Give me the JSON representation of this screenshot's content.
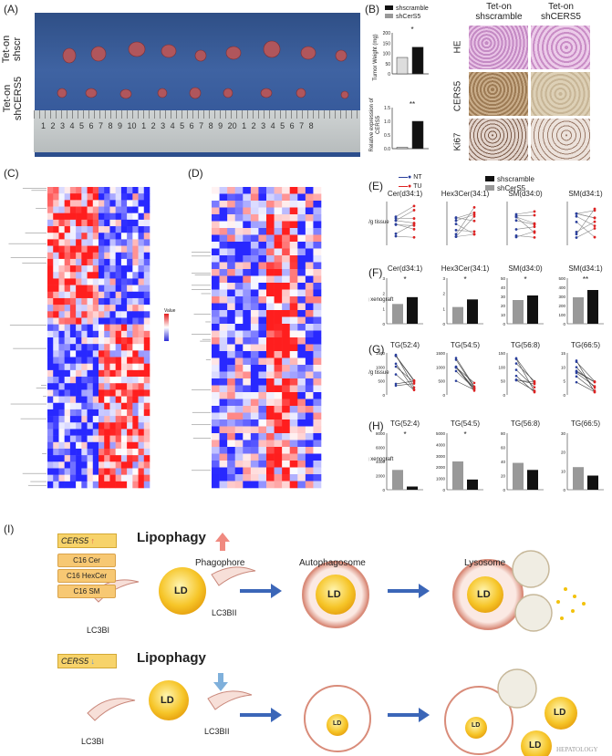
{
  "panels": {
    "A": "(A)",
    "B": "(B)",
    "C": "(C)",
    "D": "(D)",
    "E": "(E)",
    "F": "(F)",
    "G": "(G)",
    "H": "(H)",
    "I": "(I)"
  },
  "photo": {
    "row1_label_line1": "Tet-on",
    "row1_label_line2": "shscr",
    "row2_label_line1": "Tet-on",
    "row2_label_line2": "shCERS5",
    "ruler_ticks": "1 2 3 4 5 6 7 8 9 10 1 2 3 4 5 6 7 8 9 20 1 2 3 4 5 6 7 8"
  },
  "panelB": {
    "legend": [
      "shscramble",
      "shCerS5"
    ],
    "top_ylabel": "Tumor Weight (mg)",
    "top_yticks": [
      "200",
      "150",
      "100",
      "50",
      "0"
    ],
    "top_sig": "*",
    "bottom_ylabel": "Relative expression of CERS5",
    "bottom_yticks": [
      "1.5",
      "1.0",
      "0.5",
      "0.0"
    ],
    "bottom_sig": "**",
    "col1_line1": "Tet-on",
    "col1_line2": "shscramble",
    "col2_line1": "Tet-on",
    "col2_line2": "shCERS5",
    "rows": [
      "HE",
      "CERS5",
      "Ki67"
    ]
  },
  "chart_data": [
    {
      "panel": "B-top",
      "type": "bar",
      "categories": [
        "shscramble",
        "shCerS5"
      ],
      "values": [
        80,
        130
      ],
      "ylabel": "Tumor Weight (mg)",
      "ylim": [
        0,
        200
      ]
    },
    {
      "panel": "B-bottom",
      "type": "bar",
      "categories": [
        "shscramble",
        "shCerS5"
      ],
      "values": [
        0.05,
        1.0
      ],
      "ylabel": "Relative expression of CERS5",
      "ylim": [
        0,
        1.5
      ]
    },
    {
      "panel": "F",
      "type": "bar",
      "subplots": [
        {
          "title": "Cer(d34:1)",
          "yticks": [
            "0",
            "1",
            "2",
            "3"
          ],
          "values": [
            1.3,
            1.75
          ],
          "sig": "*"
        },
        {
          "title": "Hex3Cer(34:1)",
          "yticks": [
            "0",
            "1",
            "2",
            "3"
          ],
          "values": [
            1.1,
            1.6
          ],
          "sig": "*"
        },
        {
          "title": "SM(d34:0)",
          "yticks": [
            "0",
            "10",
            "20",
            "30",
            "40",
            "50"
          ],
          "values": [
            26,
            31
          ],
          "sig": "*"
        },
        {
          "title": "SM(d34:1)",
          "yticks": [
            "0",
            "100",
            "200",
            "300",
            "400",
            "500"
          ],
          "values": [
            290,
            370
          ],
          "sig": "**"
        }
      ]
    },
    {
      "panel": "H",
      "type": "bar",
      "subplots": [
        {
          "title": "TG(52:4)",
          "yticks": [
            "0",
            "2000",
            "4000",
            "6000",
            "8000"
          ],
          "values": [
            2800,
            450
          ],
          "sig": "*"
        },
        {
          "title": "TG(54:5)",
          "yticks": [
            "0",
            "1000",
            "2000",
            "3000",
            "4000",
            "5000"
          ],
          "values": [
            2500,
            900
          ],
          "sig": "*"
        },
        {
          "title": "TG(56:8)",
          "yticks": [
            "0",
            "20",
            "40",
            "60",
            "80"
          ],
          "values": [
            38,
            28
          ],
          "sig": ""
        },
        {
          "title": "TG(66:5)",
          "yticks": [
            "0",
            "10",
            "20",
            "30"
          ],
          "values": [
            12,
            7.5
          ],
          "sig": ""
        }
      ]
    }
  ],
  "panelE": {
    "legend_nt": "NT",
    "legend_tu": "TU",
    "legend_shscr": "shscramble",
    "legend_shcer": "shCerS5",
    "titles": [
      "Cer(d34:1)",
      "Hex3Cer(34:1)",
      "SM(d34:0)",
      "SM(d34:1)"
    ],
    "ylabel": "μg/g tissue"
  },
  "panelF": {
    "ylabel": "μg/g xenograft"
  },
  "panelG": {
    "titles": [
      "TG(52:4)",
      "TG(54:5)",
      "TG(56:8)",
      "TG(66:5)"
    ],
    "ylabel": "μg/g tissue",
    "yticks": [
      [
        "0",
        "500",
        "1000",
        "1500"
      ],
      [
        "0",
        "500",
        "1000",
        "1500"
      ],
      [
        "0",
        "50",
        "100",
        "150"
      ],
      [
        "0",
        "5",
        "10",
        "15"
      ]
    ]
  },
  "panelH": {
    "ylabel": "μg/g xenograft"
  },
  "heatmap": {
    "legend_title": "Value",
    "legend_ticks": [
      "1",
      "0.5",
      "0"
    ]
  },
  "schematic": {
    "cers5_up": "CERS5",
    "lipophagy_up": "Lipophagy",
    "box1": "C16 Cer",
    "box2": "C16 HexCer",
    "box3": "C16 SM",
    "phagophore": "Phagophore",
    "autophagosome": "Autophagosome",
    "lysosome": "Lysosome",
    "lc3bi": "LC3BI",
    "lc3bii": "LC3BII",
    "ld": "LD",
    "cers5_down": "CERS5",
    "lipophagy_down": "Lipophagy",
    "lc3bi_2": "LC3BI",
    "lc3bii_2": "LC3BII",
    "watermark": "HEPATOLOGY"
  }
}
